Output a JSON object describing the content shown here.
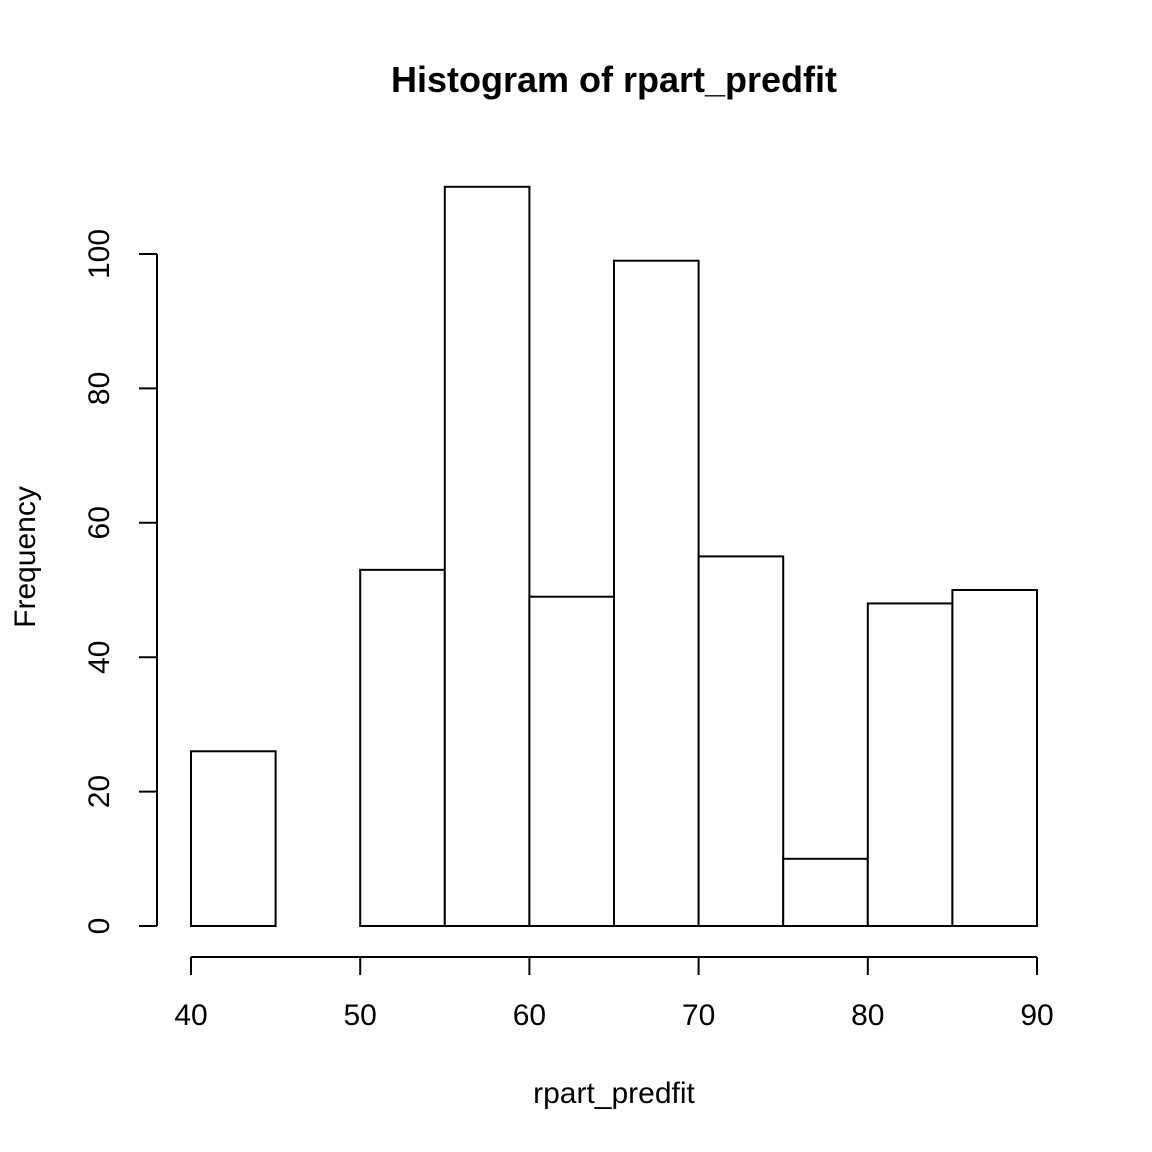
{
  "chart_data": {
    "type": "bar",
    "title": "Histogram of rpart_predfit",
    "xlabel": "rpart_predfit",
    "ylabel": "Frequency",
    "bins": [
      {
        "start": 40,
        "end": 45,
        "count": 26
      },
      {
        "start": 45,
        "end": 50,
        "count": 0
      },
      {
        "start": 50,
        "end": 55,
        "count": 53
      },
      {
        "start": 55,
        "end": 60,
        "count": 110
      },
      {
        "start": 60,
        "end": 65,
        "count": 49
      },
      {
        "start": 65,
        "end": 70,
        "count": 99
      },
      {
        "start": 70,
        "end": 75,
        "count": 55
      },
      {
        "start": 75,
        "end": 80,
        "count": 10
      },
      {
        "start": 80,
        "end": 85,
        "count": 48
      },
      {
        "start": 85,
        "end": 90,
        "count": 50
      }
    ],
    "xlim": [
      40,
      90
    ],
    "ylim": [
      0,
      110
    ],
    "x_ticks": [
      40,
      50,
      60,
      70,
      80,
      90
    ],
    "y_ticks": [
      0,
      20,
      40,
      60,
      80,
      100
    ],
    "grid": false,
    "legend": "none",
    "bar_fill": "#ffffff",
    "bar_stroke": "#000000"
  }
}
